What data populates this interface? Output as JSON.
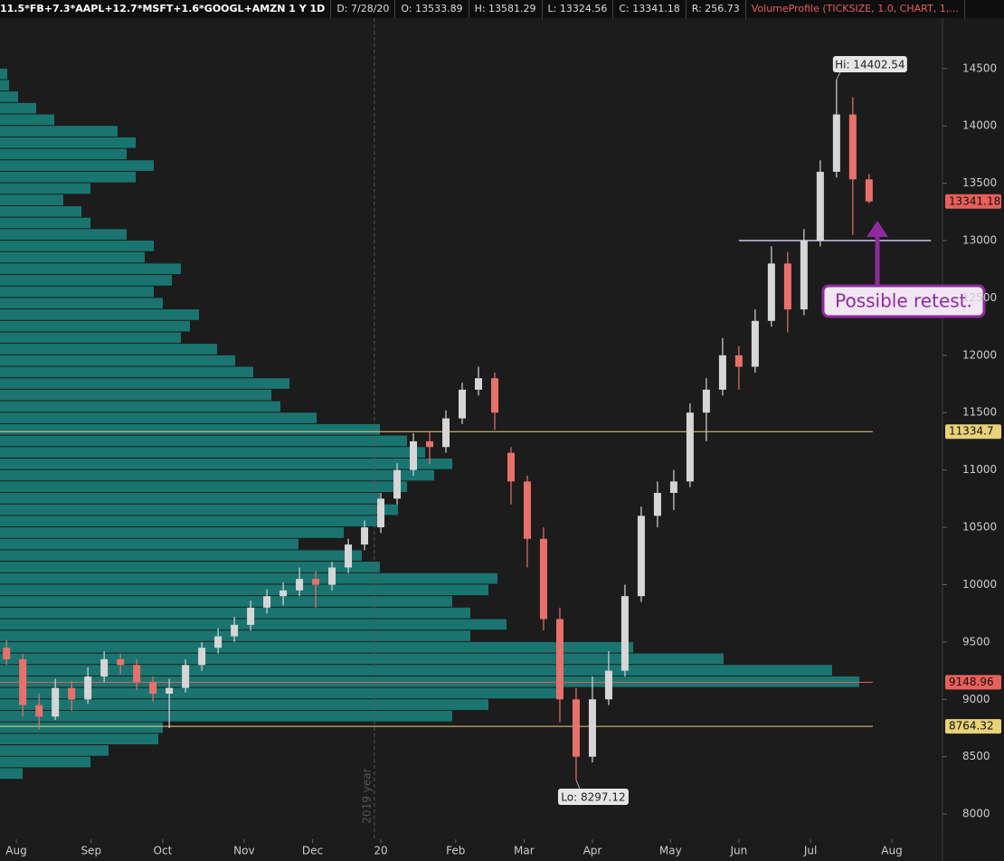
{
  "header": {
    "symbol": "11.5*FB+7.3*AAPL+12.7*MSFT+1.6*GOOGL+AMZN 1 Y 1D",
    "fields": [
      "D: 7/28/20",
      "O: 13533.89",
      "H: 13581.29",
      "L: 13324.56",
      "C: 13341.18",
      "R: 256.73"
    ],
    "study": "VolumeProfile (TICKSIZE, 1.0, CHART, 1,..."
  },
  "chart_data": {
    "type": "candlestick",
    "x": [
      2,
      7,
      12,
      17,
      22,
      27,
      32,
      37,
      42,
      47,
      52,
      57,
      62,
      67,
      72,
      77,
      82,
      87,
      92,
      97,
      102,
      107,
      112,
      117,
      122,
      127,
      132,
      137,
      142,
      147,
      152,
      157,
      162,
      167,
      172,
      177,
      182,
      187,
      192,
      197,
      202,
      207,
      212,
      217,
      222,
      227,
      232,
      237,
      242,
      247,
      252,
      257,
      262,
      267
    ],
    "open": [
      9450,
      9350,
      8950,
      8850,
      9100,
      9000,
      9200,
      9350,
      9300,
      9150,
      9050,
      9100,
      9300,
      9450,
      9550,
      9650,
      9800,
      9900,
      9950,
      10050,
      10000,
      10150,
      10350,
      10500,
      10750,
      11000,
      11250,
      11200,
      11450,
      11700,
      11800,
      11150,
      10900,
      10400,
      9700,
      9000,
      8500,
      9000,
      9250,
      9900,
      10600,
      10800,
      10900,
      11500,
      11700,
      12000,
      11900,
      12300,
      12800,
      12400,
      13000,
      13600,
      14100,
      13533.89
    ],
    "high": [
      9520,
      9400,
      9050,
      9180,
      9160,
      9280,
      9420,
      9400,
      9350,
      9200,
      9180,
      9350,
      9500,
      9620,
      9720,
      9860,
      9960,
      10020,
      10150,
      10120,
      10200,
      10400,
      10560,
      10800,
      11060,
      11320,
      11340,
      11520,
      11760,
      11900,
      11850,
      11200,
      10950,
      10500,
      9800,
      9100,
      9200,
      9420,
      10000,
      10680,
      10900,
      11000,
      11580,
      11800,
      12150,
      12080,
      12400,
      12950,
      12900,
      13100,
      13700,
      14402.54,
      14250,
      13581.29
    ],
    "low": [
      9300,
      8850,
      8740,
      8820,
      8900,
      8960,
      9150,
      9220,
      9080,
      8980,
      8750,
      9060,
      9250,
      9400,
      9500,
      9600,
      9750,
      9820,
      9900,
      9800,
      9950,
      10100,
      10300,
      10450,
      10700,
      10950,
      11050,
      11150,
      11400,
      11650,
      11350,
      10700,
      10150,
      9600,
      8800,
      8297.12,
      8450,
      8950,
      9200,
      9850,
      10500,
      10650,
      10850,
      11250,
      11650,
      11700,
      11850,
      12250,
      12200,
      12350,
      12950,
      13550,
      13050,
      13324.56
    ],
    "close": [
      9350,
      8950,
      8850,
      9100,
      9000,
      9200,
      9350,
      9300,
      9150,
      9050,
      9100,
      9300,
      9450,
      9550,
      9650,
      9800,
      9900,
      9950,
      10050,
      10000,
      10150,
      10350,
      10500,
      10750,
      11000,
      11250,
      11200,
      11450,
      11700,
      11800,
      11500,
      10900,
      10400,
      9700,
      9000,
      8500,
      9000,
      9250,
      9900,
      10600,
      10800,
      10900,
      11500,
      11700,
      12000,
      11900,
      12300,
      12800,
      12400,
      13000,
      13600,
      14100,
      13533.89,
      13341.18
    ],
    "up_color": "#d6d6d6",
    "down_color": "#e8716b",
    "xlim": [
      0,
      289
    ],
    "xticks": [
      {
        "value": 5,
        "label": "Aug"
      },
      {
        "value": 28,
        "label": "Sep"
      },
      {
        "value": 50,
        "label": "Oct"
      },
      {
        "value": 75,
        "label": "Nov"
      },
      {
        "value": 96,
        "label": "Dec"
      },
      {
        "value": 117,
        "label": "20"
      },
      {
        "value": 140,
        "label": "Feb"
      },
      {
        "value": 161,
        "label": "Mar"
      },
      {
        "value": 182,
        "label": "Apr"
      },
      {
        "value": 206,
        "label": "May"
      },
      {
        "value": 227,
        "label": "Jun"
      },
      {
        "value": 249,
        "label": "Jul"
      },
      {
        "value": 274,
        "label": "Aug"
      }
    ],
    "ylim": [
      7780,
      14940
    ],
    "yticks": [
      8000,
      8500,
      9000,
      9500,
      10000,
      10500,
      11000,
      11500,
      12000,
      12500,
      13000,
      13500,
      14000,
      14500
    ],
    "volume_profile": {
      "color": "#1a8580",
      "bin": 100,
      "prices": [
        8300,
        8400,
        8500,
        8600,
        8700,
        8800,
        8900,
        9000,
        9100,
        9200,
        9300,
        9400,
        9500,
        9600,
        9700,
        9800,
        9900,
        10000,
        10100,
        10200,
        10300,
        10400,
        10500,
        10600,
        10700,
        10800,
        10900,
        11000,
        11100,
        11200,
        11300,
        11400,
        11500,
        11600,
        11700,
        11800,
        11900,
        12000,
        12100,
        12200,
        12300,
        12400,
        12500,
        12600,
        12700,
        12800,
        12900,
        13000,
        13100,
        13200,
        13300,
        13400,
        13500,
        13600,
        13700,
        13800,
        13900,
        14000,
        14100,
        14200,
        14300,
        14400
      ],
      "values": [
        2.5,
        10,
        12,
        17.5,
        18,
        50,
        54,
        62,
        95,
        92,
        80,
        70,
        52,
        56,
        52,
        50,
        54,
        55,
        42,
        40,
        33,
        38,
        42,
        44,
        42,
        45,
        48,
        50,
        47,
        45,
        42,
        35,
        31,
        30,
        32,
        28,
        26,
        24,
        20,
        21,
        22,
        18,
        17,
        19,
        20,
        16,
        17,
        14,
        10,
        9,
        7,
        10,
        15,
        17,
        14,
        15,
        13,
        6,
        4,
        2,
        1,
        0.8
      ]
    },
    "levels": [
      {
        "value": 11334.7,
        "color": "#e8d27a"
      },
      {
        "value": 9148.96,
        "color": "#e8605a"
      },
      {
        "value": 8764.32,
        "color": "#e8d27a"
      }
    ],
    "retest_level": 13000,
    "last_price_color": "#e8605a",
    "hi_label": "Hi: 14402.54",
    "lo_label": "Lo: 8297.12",
    "note": "Possible retest.",
    "year_marker": {
      "x": 115,
      "label": "2019 year"
    }
  }
}
